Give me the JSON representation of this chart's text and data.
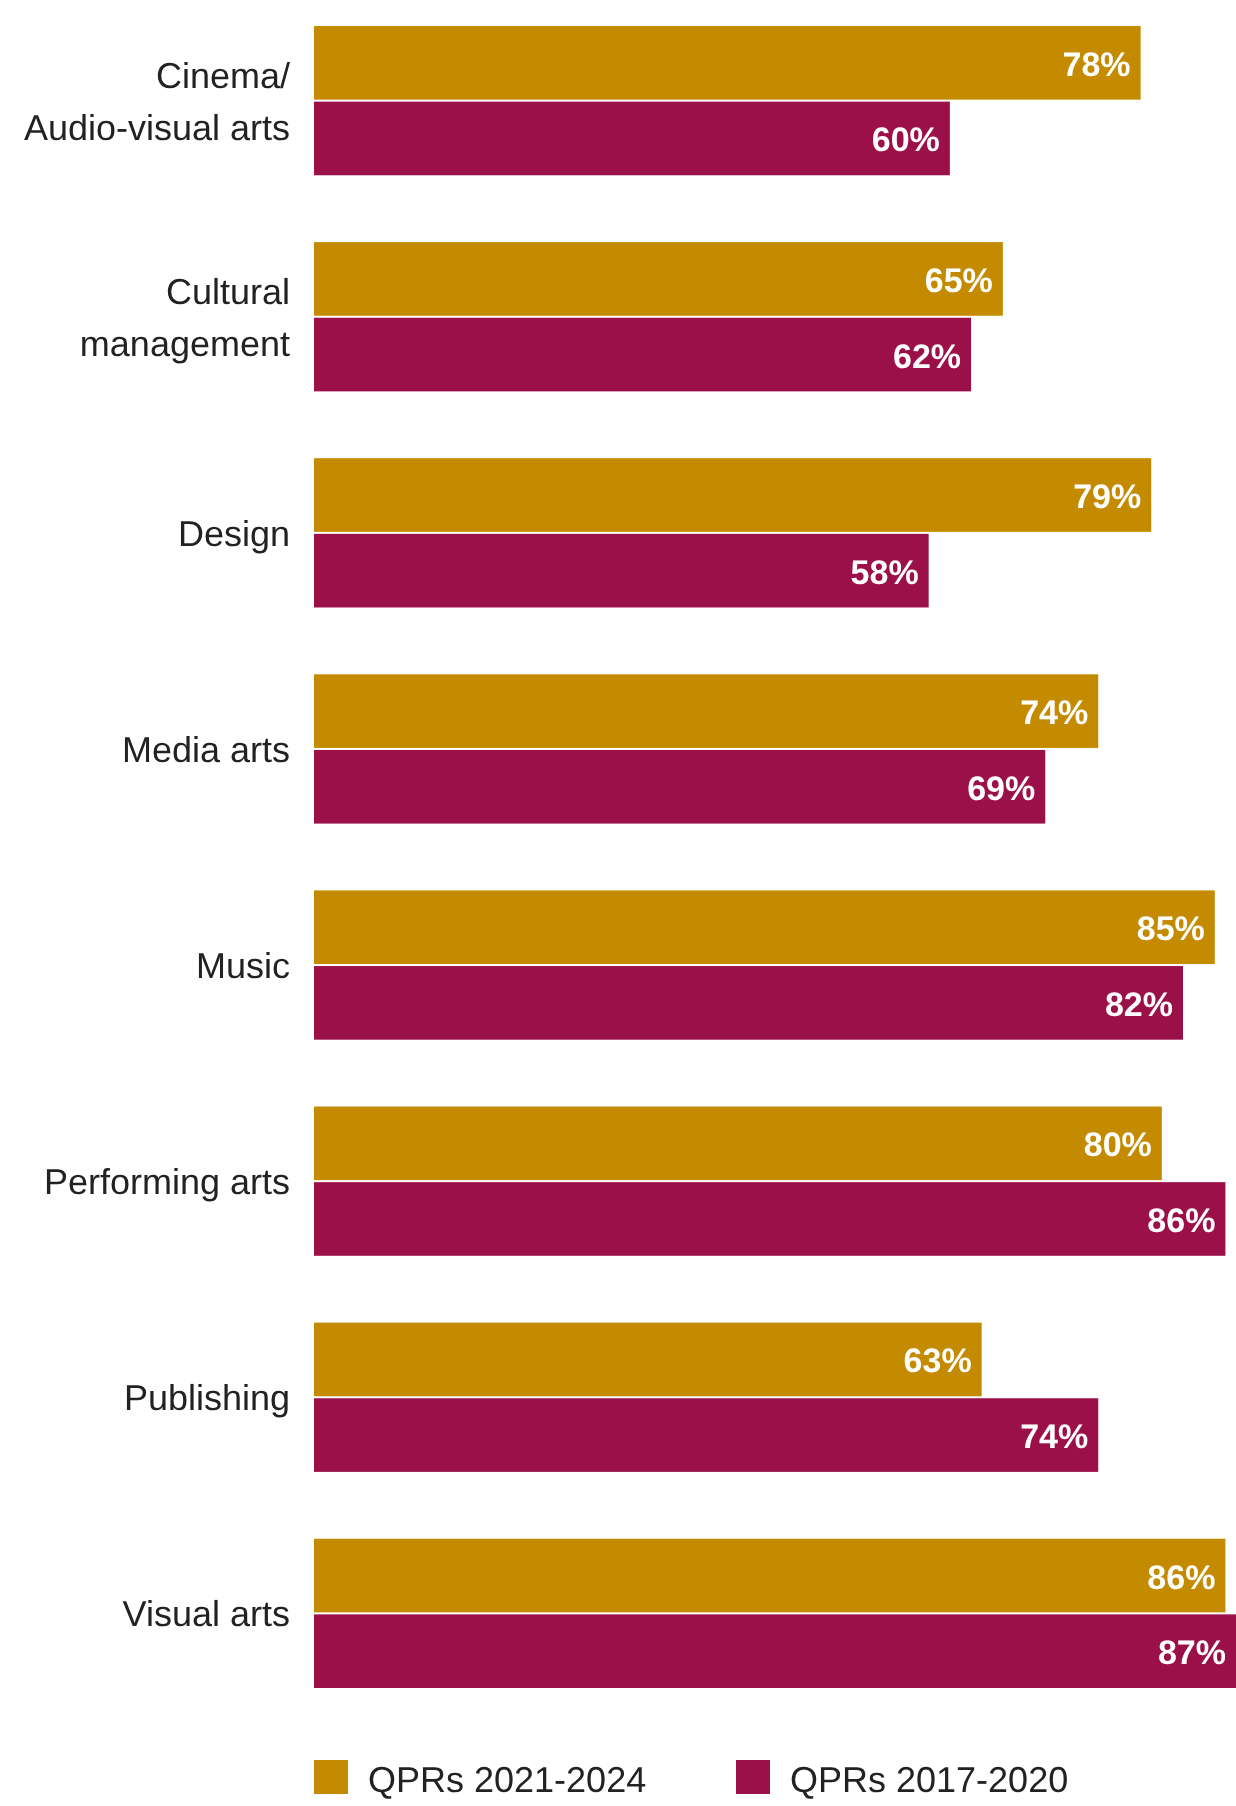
{
  "chart_data": {
    "type": "bar",
    "orientation": "horizontal",
    "categories": [
      "Cinema/\nAudio-visual arts",
      "Cultural\nmanagement",
      "Design",
      "Media arts",
      "Music",
      "Performing arts",
      "Publishing",
      "Visual arts"
    ],
    "series": [
      {
        "name": "QPRs 2021-2024",
        "color": "#c48a00",
        "values": [
          78,
          65,
          79,
          74,
          85,
          80,
          63,
          86
        ],
        "value_labels": [
          "78%",
          "65%",
          "79%",
          "74%",
          "85%",
          "80%",
          "63%",
          "86%"
        ]
      },
      {
        "name": "QPRs 2017-2020",
        "color": "#9b1049",
        "values": [
          60,
          62,
          58,
          69,
          82,
          86,
          74,
          87
        ],
        "value_labels": [
          "60%",
          "62%",
          "58%",
          "69%",
          "82%",
          "86%",
          "74%",
          "87%"
        ]
      }
    ],
    "legend": "bottom"
  }
}
